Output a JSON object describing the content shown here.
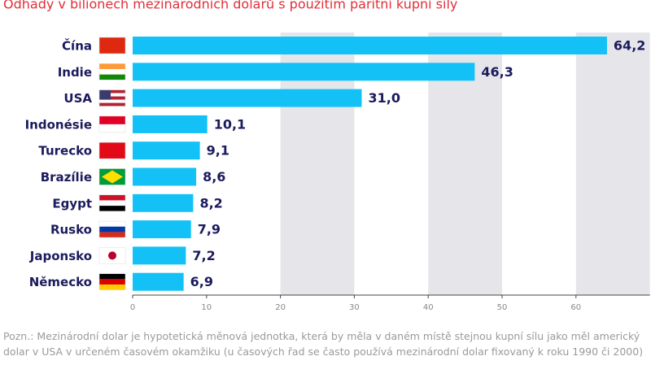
{
  "chart_data": {
    "type": "barh",
    "subtitle": "Odhady v bilionech mezinárodních dolarů s použitím paritní kupní síly",
    "categories": [
      "Čína",
      "Indie",
      "USA",
      "Indonésie",
      "Turecko",
      "Brazílie",
      "Egypt",
      "Rusko",
      "Japonsko",
      "Německo"
    ],
    "values": [
      64.2,
      46.3,
      31.0,
      10.1,
      9.1,
      8.6,
      8.2,
      7.9,
      7.2,
      6.9
    ],
    "value_labels": [
      "64,2",
      "46,3",
      "31,0",
      "10,1",
      "9,1",
      "8,6",
      "8,2",
      "7,9",
      "7,2",
      "6,9"
    ],
    "color": "#14c1f7",
    "xlim": [
      0,
      70
    ],
    "xticks": [
      0,
      10,
      20,
      30,
      40,
      50,
      60
    ],
    "note": "Pozn.: Mezinárodní dolar je hypotetická měnová jednotka, která by měla v daném místě stejnou kupní sílu jako měl americký dolar v USA v určeném časovém okamžiku (u časových řad se často používá mezinárodní dolar fixovaný k roku 1990 či 2000)"
  }
}
